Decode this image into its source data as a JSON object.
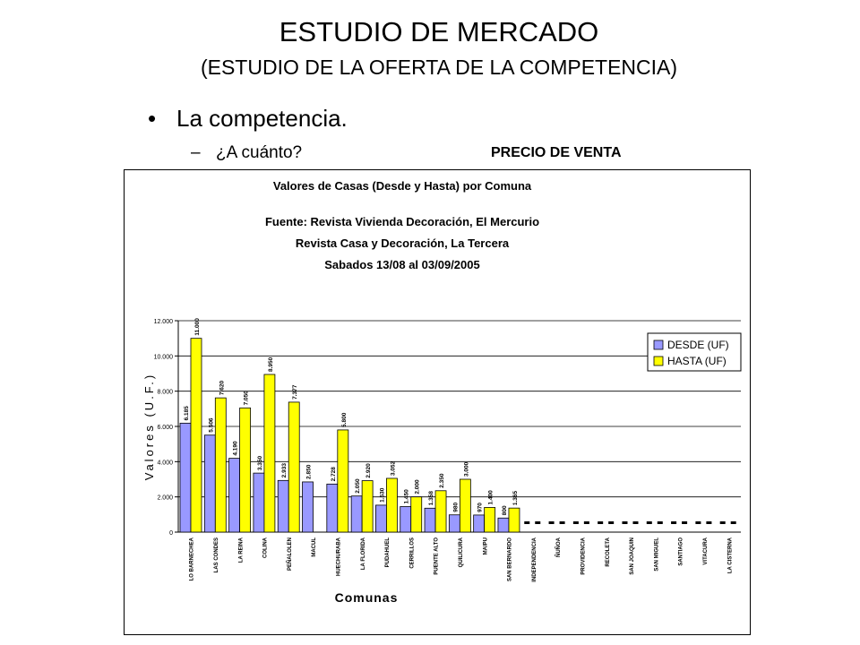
{
  "slide": {
    "title": "ESTUDIO DE MERCADO",
    "subtitle": "(ESTUDIO DE LA OFERTA DE LA COMPETENCIA)",
    "bullet": "La competencia.",
    "sub_bullet": "¿A cuánto?",
    "price_label": "PRECIO DE VENTA"
  },
  "chart_data": {
    "type": "bar",
    "title_lines": [
      "Valores de Casas (Desde y Hasta) por Comuna",
      "Fuente: Revista Vivienda Decoración, El Mercurio",
      "Revista Casa y Decoración, La Tercera",
      "Sabados 13/08 al 03/09/2005"
    ],
    "xlabel": "Comunas",
    "ylabel": "Valores (U.F.)",
    "ylim": [
      0,
      12000
    ],
    "y_ticks": [
      "0",
      "2.000",
      "4.000",
      "6.000",
      "8.000",
      "10.000",
      "12.000"
    ],
    "grid": true,
    "legend_position": "right",
    "categories": [
      "LO BARNECHEA",
      "LAS CONDES",
      "LA REINA",
      "COLINA",
      "PEÑALOLEN",
      "MACUL",
      "HUECHURABA",
      "LA FLORIDA",
      "PUDAHUEL",
      "CERRILLOS",
      "PUENTE ALTO",
      "QUILICURA",
      "MAIPU",
      "SAN BERNARDO",
      "INDEPENDENCIA",
      "ÑUÑOA",
      "PROVIDENCIA",
      "RECOLETA",
      "SAN JOAQUIN",
      "SAN MIGUEL",
      "SANTIAGO",
      "VITACURA",
      "LA CISTERNA"
    ],
    "series": [
      {
        "name": "DESDE (UF)",
        "color": "#9999ff",
        "values": [
          6185,
          5506,
          4190,
          3350,
          2933,
          2850,
          2728,
          2050,
          1530,
          1450,
          1358,
          980,
          970,
          800,
          0,
          0,
          0,
          0,
          0,
          0,
          0,
          0,
          0
        ],
        "labels": [
          "6.185",
          "5.506",
          "4.190",
          "3.350",
          "2.933",
          "2.850",
          "2.728",
          "2.050",
          "1.530",
          "1.450",
          "1.358",
          "980",
          "970",
          "800",
          "0",
          "0",
          "0",
          "0",
          "0",
          "0",
          "0",
          "0",
          "0"
        ]
      },
      {
        "name": "HASTA (UF)",
        "color": "#ffff00",
        "values": [
          11000,
          7620,
          7050,
          8950,
          7377,
          null,
          5800,
          2920,
          3052,
          2000,
          2350,
          3000,
          1400,
          1365,
          0,
          0,
          0,
          0,
          0,
          0,
          0,
          0,
          0
        ],
        "labels": [
          "11.000",
          "7.620",
          "7.050",
          "8.950",
          "7.377",
          "",
          "5.800",
          "2.920",
          "3.052",
          "2.000",
          "2.350",
          "3.000",
          "1.400",
          "1.365",
          "0",
          "0",
          "0",
          "0",
          "0",
          "0",
          "0",
          "0",
          "0"
        ]
      }
    ]
  }
}
